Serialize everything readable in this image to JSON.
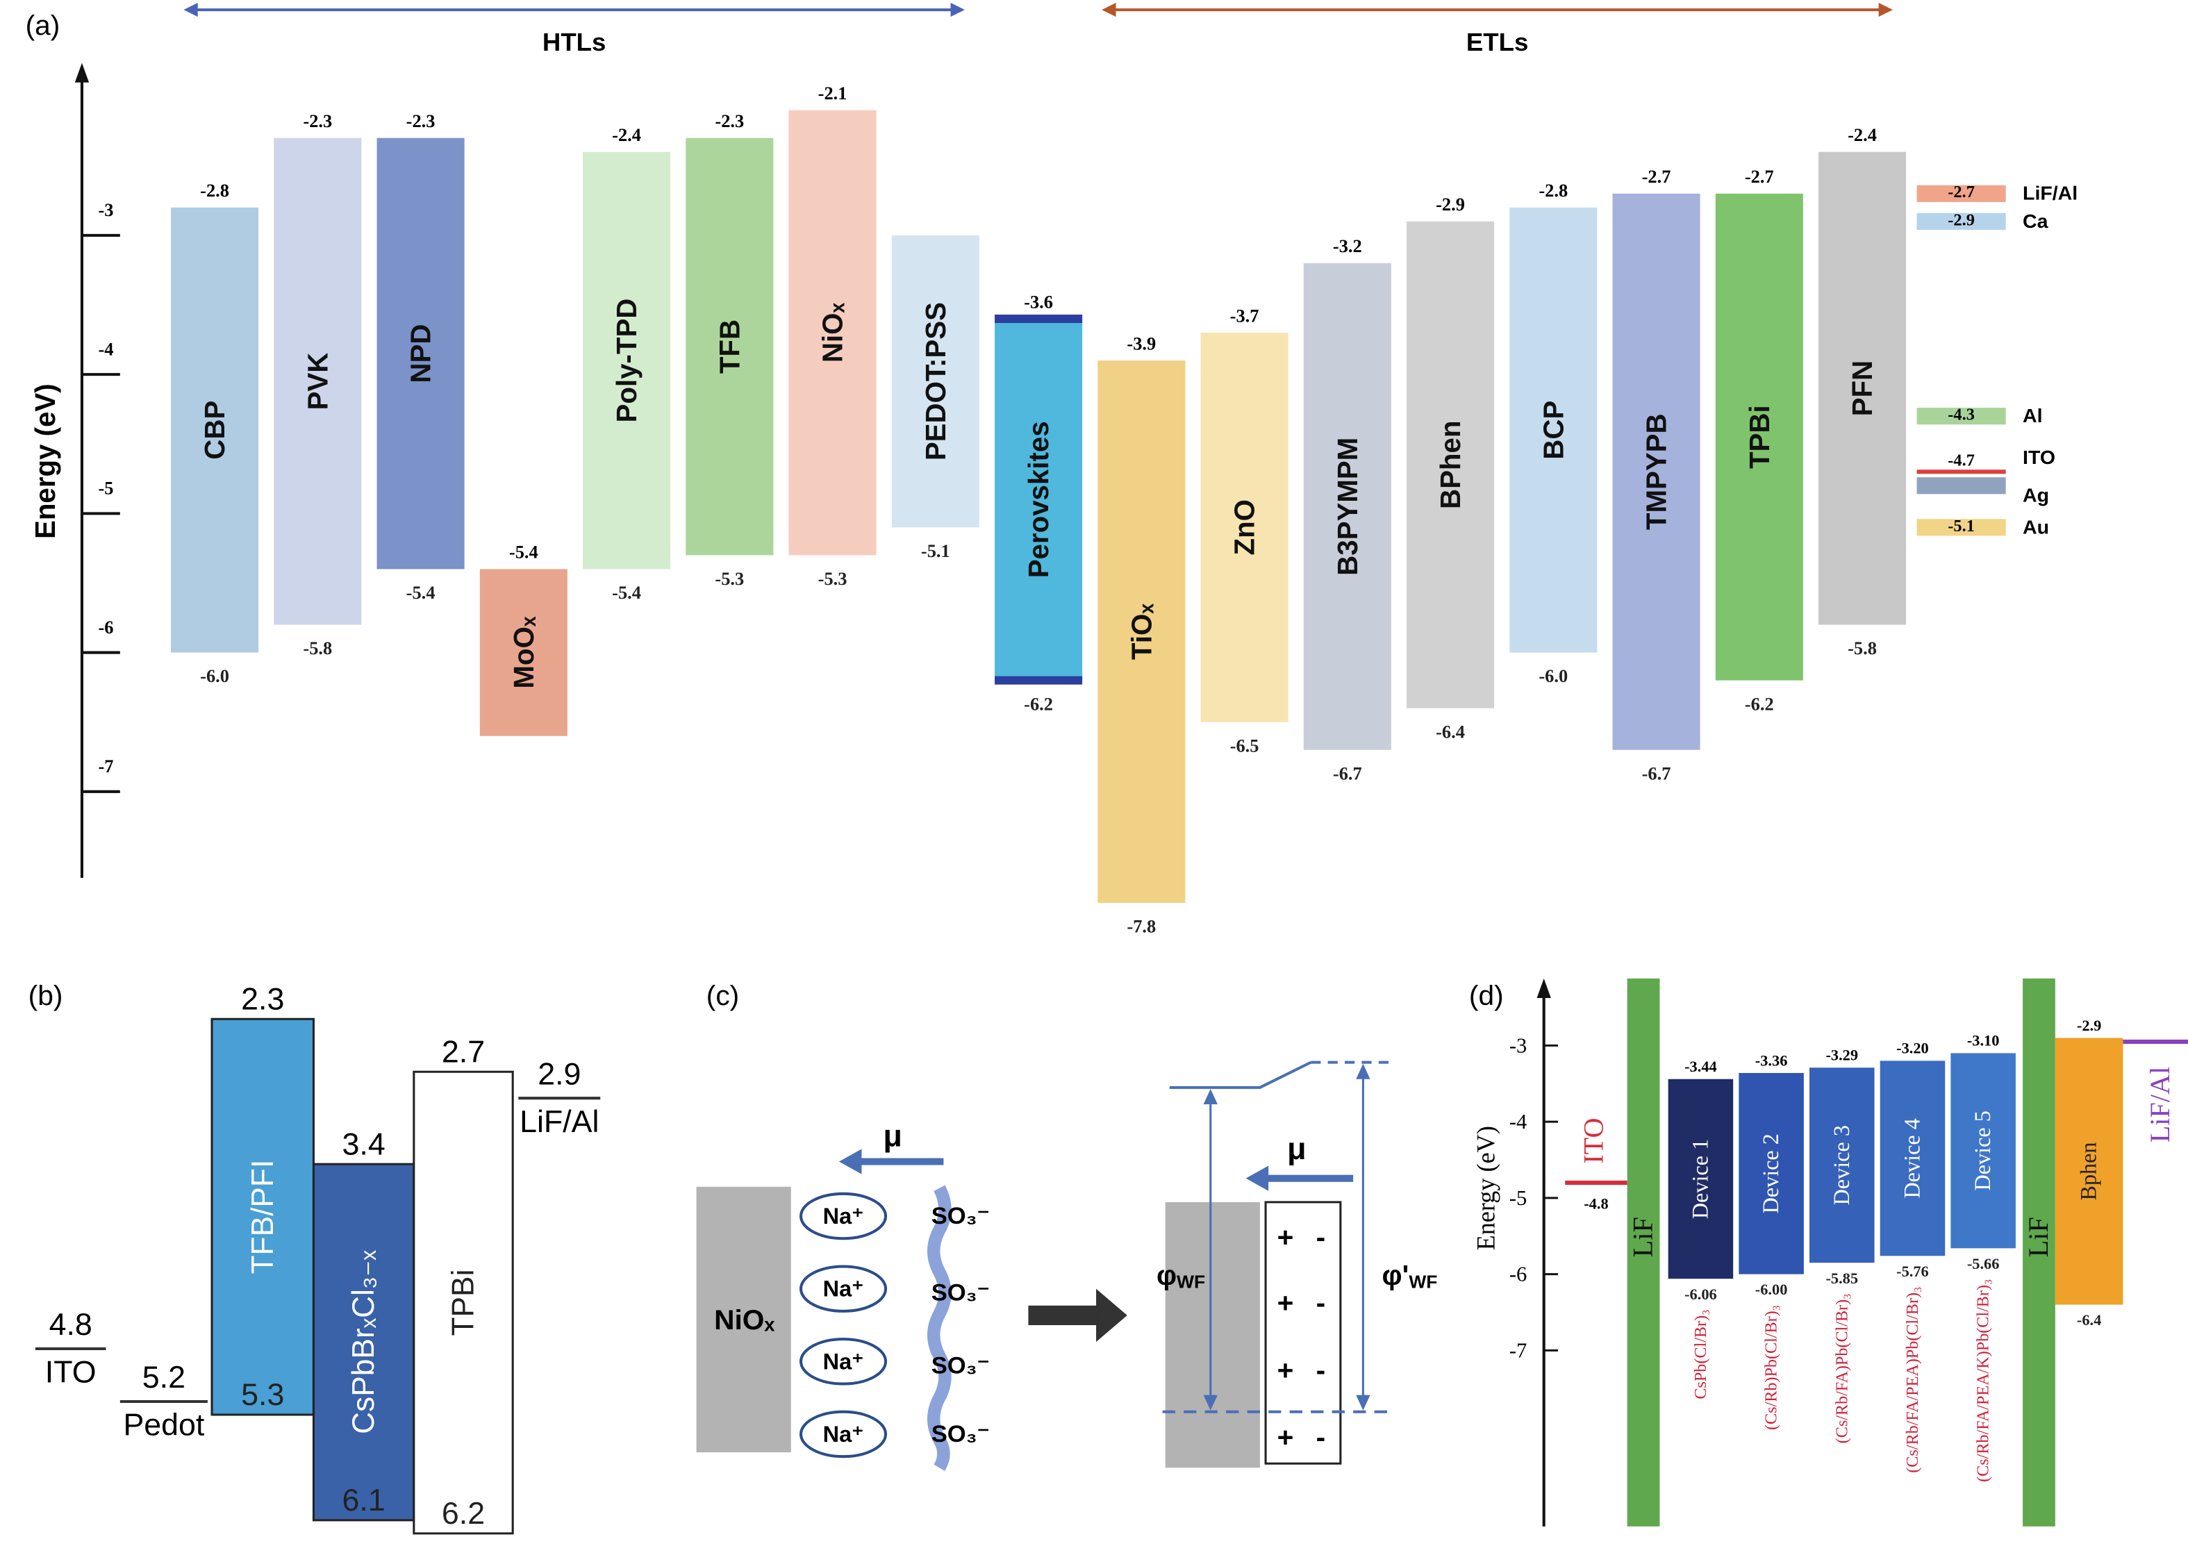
{
  "chart_data": [
    {
      "type": "energy-levels",
      "panel": "(a)",
      "y_label": "Energy (eV)",
      "ylim": [
        -7.62,
        -1.76
      ],
      "yticks": [
        -3,
        -4,
        -5,
        -6,
        -7
      ],
      "groups": [
        {
          "name": "HTLs",
          "color": "#4a63b8"
        },
        {
          "name": "ETLs",
          "color": "#b5562a"
        }
      ],
      "layers": [
        {
          "name": "CBP",
          "color": "#b0cce3",
          "top": -2.8,
          "bottom": -6,
          "bottom_label": "-6.0"
        },
        {
          "name": "PVK",
          "color": "#cdd5ea",
          "top": -2.3,
          "bottom": -5.8
        },
        {
          "name": "NPD",
          "color": "#7b93c8",
          "top": -2.3,
          "bottom": -5.4
        },
        {
          "name": "MoOₓ",
          "color": "#e8a58e",
          "top": -5.4,
          "bottom": -6.6,
          "bottom_label": null
        },
        {
          "name": "Poly-TPD",
          "color": "#d3eccd",
          "top": -2.4,
          "bottom": -5.4
        },
        {
          "name": "TFB",
          "color": "#acd59b",
          "top": -2.3,
          "bottom": -5.3
        },
        {
          "name": "NiOₓ",
          "color": "#f5cdbf",
          "top": -2.1,
          "bottom": -5.3
        },
        {
          "name": "PEDOT:PSS",
          "color": "#d4e5f1",
          "top": -3,
          "bottom": -5.1,
          "top_label": null
        },
        {
          "name": "Perovskites",
          "color": "#4fb8dc",
          "edge_color": "#2a3f9e",
          "top": -3.6,
          "bottom": -6.2
        },
        {
          "name": "TiOₓ",
          "color": "#f0d185",
          "top": -3.9,
          "bottom": -7.8
        },
        {
          "name": "ZnO",
          "color": "#f7e4b0",
          "top": -3.7,
          "bottom": -6.5
        },
        {
          "name": "B3PYMPM",
          "color": "#c7ced9",
          "top": -3.2,
          "bottom": -6.7
        },
        {
          "name": "BPhen",
          "color": "#d1d1d1",
          "top": -2.9,
          "bottom": -6.4
        },
        {
          "name": "BCP",
          "color": "#c5dcee",
          "top": -2.8,
          "bottom": -6,
          "bottom_label": "-6.0"
        },
        {
          "name": "TMPYPB",
          "color": "#a5b2dc",
          "top": -2.7,
          "bottom": -6.7
        },
        {
          "name": "TPBi",
          "color": "#7fc46d",
          "top": -2.7,
          "bottom": -6.2
        },
        {
          "name": "PFN",
          "color": "#c8c8c8",
          "top": -2.4,
          "bottom": -5.8
        }
      ],
      "electrodes": [
        {
          "name": "LiF/Al",
          "value": -2.7,
          "color": "#f0a58b"
        },
        {
          "name": "Ca",
          "value": -2.9,
          "color": "#b5d3ea"
        },
        {
          "name": "Al",
          "value": -4.3,
          "color": "#a8d49a"
        },
        {
          "name": "ITO",
          "value": -4.7,
          "color": "#d9413e",
          "shape": "line"
        },
        {
          "name": "Ag",
          "value": -4.8,
          "color": "#8fa3bf",
          "value_label": null
        },
        {
          "name": "Au",
          "value": -5.1,
          "color": "#f2d487"
        }
      ]
    },
    {
      "type": "energy-levels",
      "panel": "(b)",
      "layers": [
        {
          "name": "TFB/PFI",
          "color": "#4a9fd4",
          "top": 2.3,
          "bottom": 5.3
        },
        {
          "name": "CsPbBrₓCl₃₋ₓ",
          "color": "#3a62a8",
          "top": 3.4,
          "bottom": 6.1
        },
        {
          "name": "TPBi",
          "color": "#ffffff",
          "top": 2.7,
          "bottom": 6.2
        }
      ],
      "electrodes": [
        {
          "name": "ITO",
          "value": 4.8,
          "color": "#333333"
        },
        {
          "name": "Pedot",
          "value": 5.2,
          "color": "#333333"
        },
        {
          "name": "LiF/Al",
          "value": 2.9,
          "color": "#333333"
        }
      ]
    },
    {
      "type": "energy-levels",
      "panel": "(d)",
      "y_label": "Energy (eV)",
      "ylim": [
        -9.31,
        -2.12
      ],
      "yticks": [
        -3,
        -4,
        -5,
        -6,
        -7
      ],
      "side_layers": [
        "LiF",
        "LiF"
      ],
      "layers": [
        {
          "name": "Device 1",
          "composition": "CsPb(Cl/Br)₃",
          "color": "#1f2c66",
          "top": -3.44,
          "bottom": -6.06
        },
        {
          "name": "Device 2",
          "composition": "(Cs/Rb)Pb(Cl/Br)₃",
          "color": "#2f55b0",
          "top": -3.36,
          "bottom": -6,
          "bottom_label": "-6.00"
        },
        {
          "name": "Device 3",
          "composition": "(Cs/Rb/FA)Pb(Cl/Br)₃",
          "color": "#3561b8",
          "top": -3.29,
          "bottom": -5.85
        },
        {
          "name": "Device 4",
          "composition": "(Cs/Rb/FA/PEA)Pb(Cl/Br)₃",
          "color": "#3a6cc0",
          "top": -3.2,
          "bottom": -5.76,
          "top_label": "-3.20"
        },
        {
          "name": "Device 5",
          "composition": "(Cs/Rb/FA/PEA/K)Pb(Cl/Br)₃",
          "color": "#3f78c8",
          "top": -3.1,
          "bottom": -5.66,
          "top_label": "-3.10"
        },
        {
          "name": "Bphen",
          "color": "#f0a12a",
          "top": -2.9,
          "bottom": -6.4
        }
      ],
      "electrodes": [
        {
          "name": "ITO",
          "value": -4.8,
          "color": "#d32f3a"
        },
        {
          "name": "LiF/Al",
          "value": -2.95,
          "color": "#8a3fc0",
          "value_label": null
        }
      ]
    }
  ],
  "diagram": {
    "panel": "(c)",
    "mu": [
      "μ",
      "μ"
    ],
    "material": "NiOₓ",
    "cations": [
      "Na⁺",
      "Na⁺",
      "Na⁺",
      "Na⁺"
    ],
    "anions": [
      "SO₃⁻",
      "SO₃⁻",
      "SO₃⁻",
      "SO₃⁻"
    ],
    "work_functions": [
      {
        "symbol": "φ",
        "sub": "WF"
      },
      {
        "symbol": "φ'",
        "sub": "WF"
      }
    ],
    "charges": [
      [
        "+",
        "-"
      ],
      [
        "+",
        "-"
      ],
      [
        "+",
        "-"
      ],
      [
        "+",
        "-"
      ]
    ]
  }
}
